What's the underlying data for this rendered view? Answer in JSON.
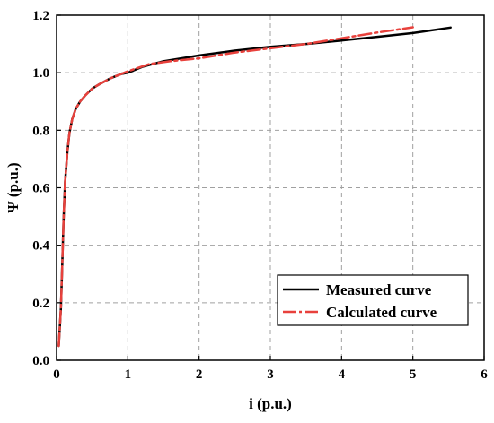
{
  "chart_data": {
    "type": "line",
    "title": "",
    "xlabel": "i (p.u.)",
    "ylabel": "Ψ (p.u.)",
    "xlim": [
      0,
      6
    ],
    "ylim": [
      0.0,
      1.2
    ],
    "x_ticks": [
      0,
      1,
      2,
      3,
      4,
      5,
      6
    ],
    "y_ticks": [
      0.0,
      0.2,
      0.4,
      0.6,
      0.8,
      1.0,
      1.2
    ],
    "x_tick_labels": [
      "0",
      "1",
      "2",
      "3",
      "4",
      "5",
      "6"
    ],
    "y_tick_labels": [
      "0.0",
      "0.2",
      "0.4",
      "0.6",
      "0.8",
      "1.0",
      "1.2"
    ],
    "grid": true,
    "legend_position": "bottom-right",
    "series": [
      {
        "name": "Measured curve",
        "color": "#000000",
        "style": "solid",
        "x": [
          0.03,
          0.06,
          0.08,
          0.1,
          0.12,
          0.15,
          0.18,
          0.22,
          0.27,
          0.33,
          0.4,
          0.5,
          0.6,
          0.75,
          0.9,
          1.0,
          1.2,
          1.5,
          2.0,
          2.5,
          3.0,
          3.5,
          4.0,
          4.5,
          5.0,
          5.53
        ],
        "y": [
          0.05,
          0.18,
          0.33,
          0.5,
          0.62,
          0.72,
          0.79,
          0.84,
          0.875,
          0.9,
          0.92,
          0.945,
          0.96,
          0.98,
          0.995,
          1.0,
          1.02,
          1.04,
          1.06,
          1.077,
          1.09,
          1.1,
          1.112,
          1.125,
          1.138,
          1.157
        ]
      },
      {
        "name": "Calculated curve",
        "color": "#e8413c",
        "style": "dash-dot",
        "x": [
          0.03,
          0.06,
          0.08,
          0.1,
          0.12,
          0.15,
          0.18,
          0.22,
          0.27,
          0.33,
          0.4,
          0.5,
          0.6,
          0.75,
          0.9,
          1.0,
          1.3,
          1.6,
          2.0,
          2.5,
          3.0,
          3.5,
          4.0,
          4.5,
          5.0
        ],
        "y": [
          0.05,
          0.18,
          0.33,
          0.5,
          0.62,
          0.72,
          0.79,
          0.84,
          0.875,
          0.9,
          0.92,
          0.945,
          0.96,
          0.98,
          0.995,
          1.005,
          1.03,
          1.04,
          1.05,
          1.07,
          1.085,
          1.1,
          1.12,
          1.14,
          1.158
        ]
      }
    ]
  }
}
